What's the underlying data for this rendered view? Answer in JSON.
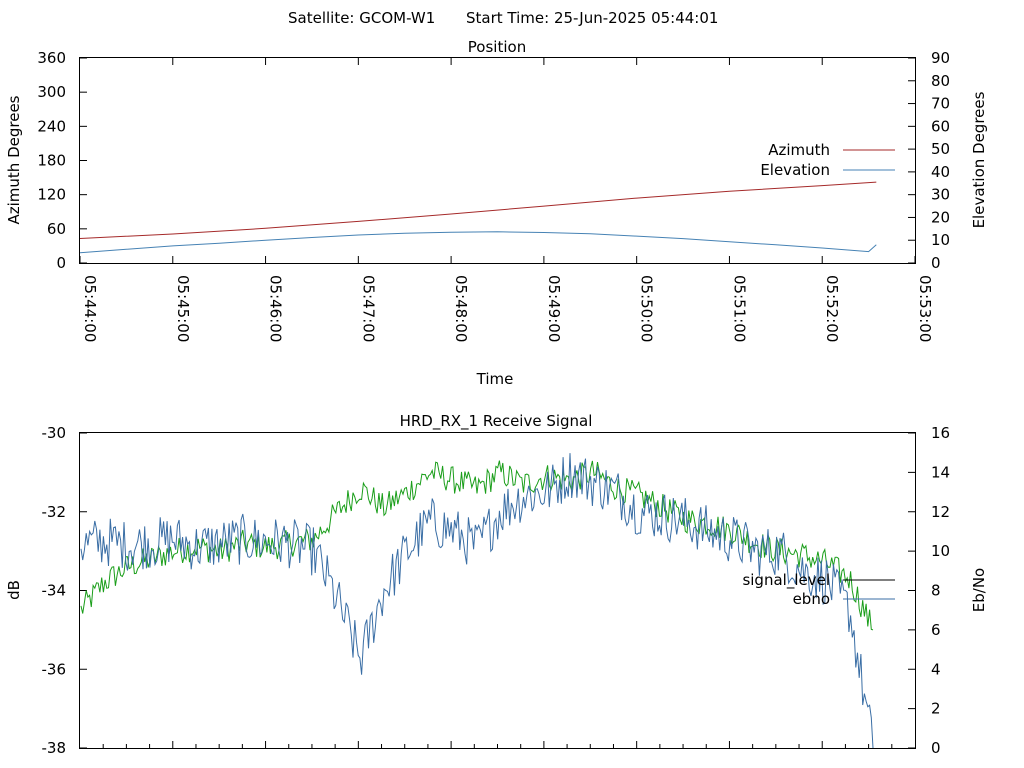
{
  "header": {
    "satellite": "Satellite: GCOM-W1",
    "start_time": "Start Time: 25-Jun-2025 05:44:01"
  },
  "chart_data": [
    {
      "type": "line",
      "title": "Position",
      "xlabel": "Time",
      "ylabel": "Azimuth Degrees",
      "y2label": "Elevation Degrees",
      "x_ticks": [
        "05:44:00",
        "05:45:00",
        "05:46:00",
        "05:47:00",
        "05:48:00",
        "05:49:00",
        "05:50:00",
        "05:51:00",
        "05:52:00",
        "05:53:00"
      ],
      "xlim": [
        "05:44:00",
        "05:53:00"
      ],
      "ylim": [
        0,
        360
      ],
      "y_ticks": [
        0,
        60,
        120,
        180,
        240,
        300,
        360
      ],
      "y2lim": [
        0,
        90
      ],
      "y2_ticks": [
        0,
        10,
        20,
        30,
        40,
        50,
        60,
        70,
        80,
        90
      ],
      "legend_position": "right",
      "grid": false,
      "series": [
        {
          "name": "Azimuth",
          "axis": "left",
          "color": "#a52a2a",
          "x": [
            "05:44:00",
            "05:45:00",
            "05:46:00",
            "05:47:00",
            "05:48:00",
            "05:49:00",
            "05:50:00",
            "05:51:00",
            "05:52:00",
            "05:52:35"
          ],
          "y": [
            43,
            51,
            61,
            73,
            86,
            100,
            114,
            126,
            136,
            142
          ]
        },
        {
          "name": "Elevation",
          "axis": "right",
          "color": "#4682b4",
          "x": [
            "05:44:00",
            "05:44:30",
            "05:45:00",
            "05:45:30",
            "05:46:00",
            "05:46:30",
            "05:47:00",
            "05:47:30",
            "05:48:00",
            "05:48:30",
            "05:49:00",
            "05:49:30",
            "05:50:00",
            "05:50:30",
            "05:51:00",
            "05:51:30",
            "05:52:00",
            "05:52:30",
            "05:52:35"
          ],
          "y": [
            4.5,
            6,
            7.5,
            8.7,
            10,
            11.2,
            12.3,
            13.1,
            13.5,
            13.7,
            13.4,
            12.8,
            11.8,
            10.7,
            9.3,
            8,
            6.6,
            5,
            8
          ]
        }
      ]
    },
    {
      "type": "line",
      "title": "HRD_RX_1 Receive Signal",
      "xlabel": "",
      "ylabel": "dB",
      "y2label": "Eb/No",
      "ylim": [
        -38,
        -30
      ],
      "y_ticks": [
        -38,
        -36,
        -34,
        -32,
        -30
      ],
      "y2lim": [
        0,
        16
      ],
      "y2_ticks": [
        0,
        2,
        4,
        6,
        8,
        10,
        12,
        14,
        16
      ],
      "legend_position": "right",
      "grid": false,
      "series": [
        {
          "name": "signal_level",
          "axis": "left",
          "color": "#1a9e1a",
          "profile": [
            -34.5,
            -33.8,
            -33.4,
            -33.2,
            -33.0,
            -32.9,
            -33.0,
            -32.8,
            -32.9,
            -32.8,
            -32.7,
            -32.0,
            -31.4,
            -31.9,
            -31.5,
            -31.0,
            -31.2,
            -31.4,
            -31.0,
            -31.3,
            -31.1,
            -31.2,
            -31.0,
            -31.4,
            -31.6,
            -31.9,
            -32.2,
            -32.3,
            -32.5,
            -32.8,
            -33.0,
            -33.1,
            -33.3,
            -33.7,
            -35.0
          ],
          "noise": 0.35
        },
        {
          "name": "ebno",
          "axis": "right",
          "color": "#3a6ea5",
          "profile": [
            10.3,
            10.5,
            10.3,
            10.4,
            10.6,
            10.2,
            10.4,
            10.6,
            10.5,
            10.4,
            10.0,
            7.5,
            4.5,
            8.0,
            10.0,
            11.5,
            11.0,
            10.2,
            12.0,
            12.8,
            13.0,
            14.0,
            13.5,
            13.0,
            12.0,
            11.8,
            11.5,
            11.0,
            10.6,
            10.0,
            10.0,
            9.0,
            8.5,
            7.0,
            0
          ],
          "noise": 1.3
        }
      ]
    }
  ]
}
